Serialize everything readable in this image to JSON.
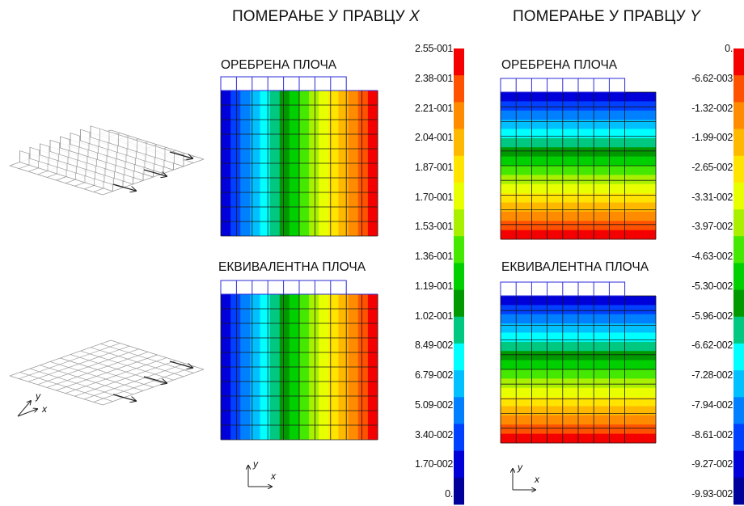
{
  "titles": {
    "x_prefix": "ПОМЕРАЊЕ У ПРАВЦУ ",
    "x_axis": "X",
    "y_prefix": "ПОМЕРАЊЕ У ПРАВЦУ ",
    "y_axis": "Y"
  },
  "subtitles": {
    "ribbed_x": "ОРЕБРЕНА ПЛОЧА",
    "equiv_x": "ЕКВИВАЛЕНТНА ПЛОЧА",
    "ribbed_y": "ОРЕБРЕНА ПЛОЧА",
    "equiv_y": "ЕКВИВАЛЕНТНА ПЛОЧА"
  },
  "axis_labels": {
    "x": "x",
    "y": "y"
  },
  "legend_x": {
    "labels": [
      "2.55-001",
      "2.38-001",
      "2.21-001",
      "2.04-001",
      "1.87-001",
      "1.70-001",
      "1.53-001",
      "1.36-001",
      "1.19-001",
      "1.02-001",
      "8.49-002",
      "6.79-002",
      "5.09-002",
      "3.40-002",
      "1.70-002",
      "0."
    ]
  },
  "legend_y": {
    "labels": [
      "0.",
      "-6.62-003",
      "-1.32-002",
      "-1.99-002",
      "-2.65-002",
      "-3.31-002",
      "-3.97-002",
      "-4.63-002",
      "-5.30-002",
      "-5.96-002",
      "-6.62-002",
      "-7.28-002",
      "-7.94-002",
      "-8.61-002",
      "-9.27-002",
      "-9.93-002"
    ]
  },
  "colors": {
    "scale_top_to_bottom": [
      "#f50000",
      "#ff5200",
      "#ff8c00",
      "#ffb800",
      "#ffe400",
      "#e8ff00",
      "#a8f000",
      "#45e800",
      "#00cf00",
      "#009a00",
      "#00c880",
      "#00ffff",
      "#00c0ff",
      "#0080ff",
      "#0040ff",
      "#0000d8",
      "#00009a"
    ],
    "mesh_line": "#1a1a1a",
    "rib_outline": "#2b2bd8"
  },
  "icons": {
    "ribbed_plate": "ribbed-plate-wireframe-icon",
    "flat_plate": "flat-plate-wireframe-icon",
    "load_arrow": "load-arrow-icon"
  }
}
